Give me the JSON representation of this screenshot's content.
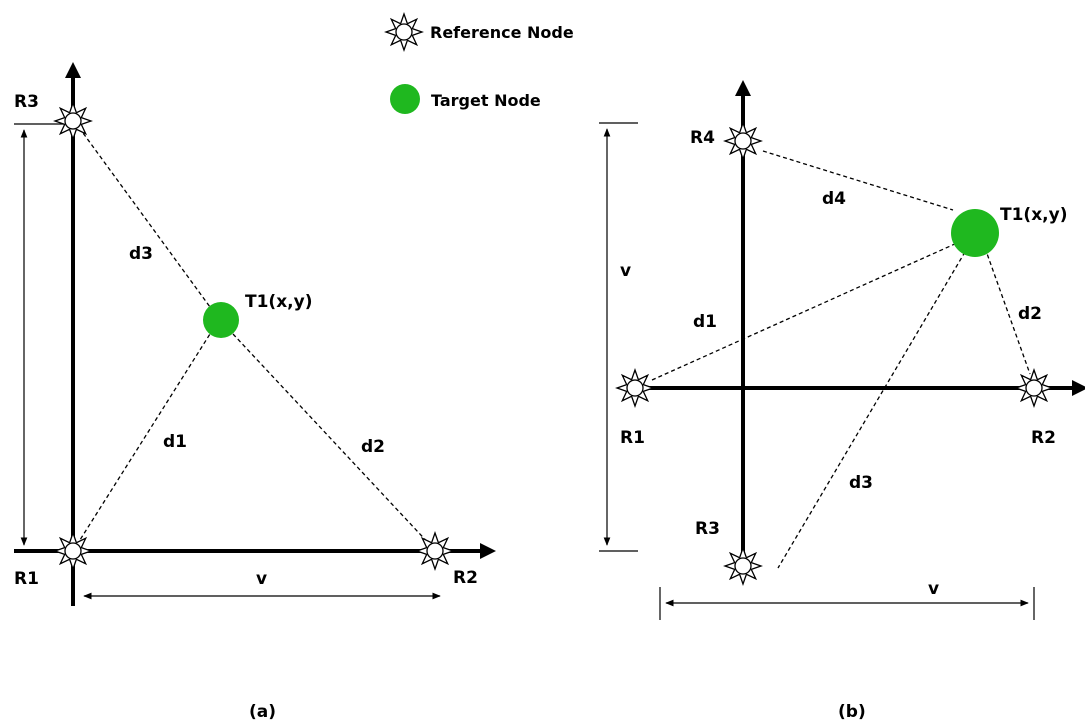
{
  "legend": {
    "reference_label": "Reference Node",
    "target_label": "Target Node",
    "target_color": "#1fb81f"
  },
  "diagram_a": {
    "caption": "(a)",
    "reference_nodes": [
      "R1",
      "R2",
      "R3"
    ],
    "target": "T1(x,y)",
    "distances": [
      "d1",
      "d2",
      "d3"
    ],
    "dimension": "v"
  },
  "diagram_b": {
    "caption": "(b)",
    "reference_nodes": [
      "R1",
      "R2",
      "R3",
      "R4"
    ],
    "target": "T1(x,y)",
    "distances": [
      "d1",
      "d2",
      "d3",
      "d4"
    ],
    "dimension_vertical": "v",
    "dimension_horizontal": "v"
  }
}
